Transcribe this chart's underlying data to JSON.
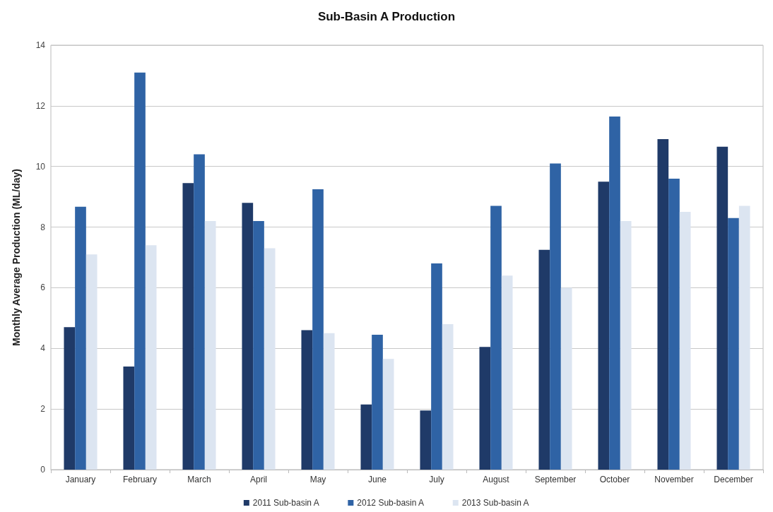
{
  "chart_data": {
    "type": "bar",
    "title": "Sub-Basin A Production",
    "ylabel": "Monthly Average Production (ML/day)",
    "categories": [
      "January",
      "February",
      "March",
      "April",
      "May",
      "June",
      "July",
      "August",
      "September",
      "October",
      "November",
      "December"
    ],
    "series": [
      {
        "name": "2011 Sub-basin A",
        "color": "#1f3a68",
        "values": [
          4.7,
          3.4,
          9.45,
          8.8,
          4.6,
          2.15,
          1.95,
          4.05,
          7.25,
          9.5,
          10.9,
          10.65
        ]
      },
      {
        "name": "2012 Sub-basin A",
        "color": "#2f63a5",
        "values": [
          8.67,
          13.1,
          10.4,
          8.2,
          9.25,
          4.45,
          6.8,
          8.7,
          10.1,
          11.65,
          9.6,
          8.3
        ]
      },
      {
        "name": "2013 Sub-basin A",
        "color": "#dce5f1",
        "values": [
          7.1,
          7.4,
          8.2,
          7.3,
          4.5,
          3.65,
          4.8,
          6.4,
          6.0,
          8.2,
          8.5,
          8.7
        ]
      }
    ],
    "ylim": [
      0,
      14
    ],
    "yticks": [
      0,
      2,
      4,
      6,
      8,
      10,
      12,
      14
    ],
    "grid": "y",
    "legend": "bottom"
  }
}
